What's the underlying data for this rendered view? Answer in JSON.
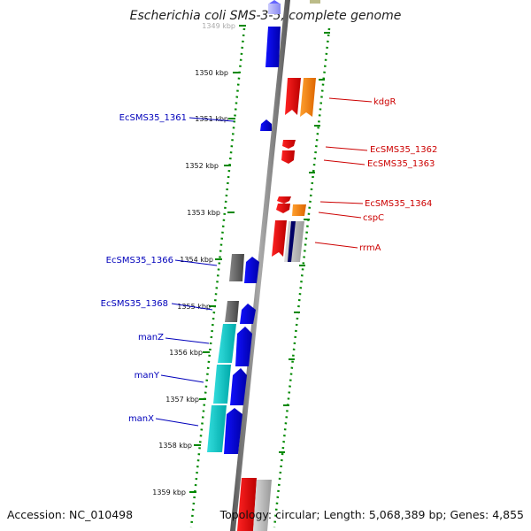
{
  "title": "Escherichia coli SMS-3-5, complete genome",
  "footer": {
    "accession": "Accession: NC_010498",
    "info": "Topology: circular; Length: 5,068,389 bp; Genes: 4,855"
  },
  "ticks": [
    {
      "label": "1349 kbp",
      "faded": true
    },
    {
      "label": "1350 kbp"
    },
    {
      "label": "1351 kbp"
    },
    {
      "label": "1352 kbp"
    },
    {
      "label": "1353 kbp"
    },
    {
      "label": "1354 kbp"
    },
    {
      "label": "1355 kbp"
    },
    {
      "label": "1356 kbp"
    },
    {
      "label": "1357 kbp"
    },
    {
      "label": "1358 kbp"
    },
    {
      "label": "1359 kbp"
    }
  ],
  "right_labels": [
    {
      "text": "kdgR",
      "color": "#cc0000"
    },
    {
      "text": "EcSMS35_1362",
      "color": "#cc0000"
    },
    {
      "text": "EcSMS35_1363",
      "color": "#cc0000"
    },
    {
      "text": "EcSMS35_1364",
      "color": "#cc0000"
    },
    {
      "text": "cspC",
      "color": "#cc0000"
    },
    {
      "text": "rrmA",
      "color": "#cc0000"
    }
  ],
  "left_labels": [
    {
      "text": "EcSMS35_1361",
      "color": "#0000bb"
    },
    {
      "text": "EcSMS35_1366",
      "color": "#0000bb"
    },
    {
      "text": "EcSMS35_1368",
      "color": "#0000bb"
    },
    {
      "text": "manZ",
      "color": "#0000bb"
    },
    {
      "text": "manY",
      "color": "#0000bb"
    },
    {
      "text": "manX",
      "color": "#0000bb"
    }
  ],
  "colors": {
    "forward_gene": "#0000ee",
    "reverse_gene": "#ee0000",
    "orange_gene": "#ff8800",
    "cyan_gene": "#00cccc",
    "grey_gene": "#666666",
    "rna_navy": "#000066",
    "ruler_dots": "#008800",
    "backbone": "#777777"
  }
}
